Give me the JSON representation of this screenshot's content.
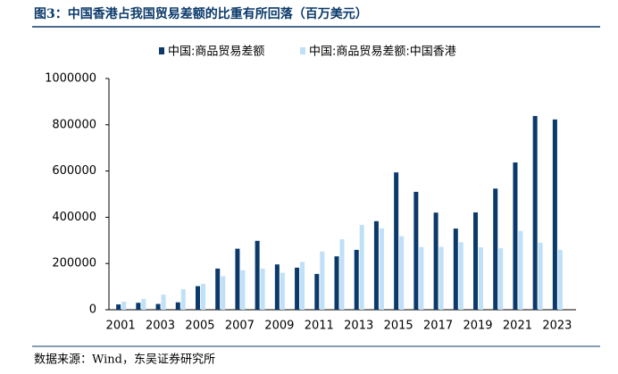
{
  "chart_data": {
    "type": "bar",
    "title": "图3：中国香港占我国贸易差额的比重有所回落（百万美元）",
    "source": "数据来源：Wind，东吴证券研究所",
    "categories": [
      "2001",
      null,
      "2003",
      null,
      "2005",
      null,
      "2007",
      null,
      "2009",
      null,
      "2011",
      null,
      "2013",
      null,
      "2015",
      null,
      "2017",
      null,
      "2019",
      null,
      "2021",
      null,
      "2023"
    ],
    "series": [
      {
        "name": "中国:商品贸易差额",
        "color": "#0b3a6a",
        "values": [
          23000,
          30000,
          25000,
          32000,
          102000,
          178000,
          264000,
          298000,
          196000,
          182000,
          155000,
          231000,
          259000,
          383000,
          594000,
          510000,
          420000,
          351000,
          421000,
          524000,
          637000,
          838000,
          823000
        ]
      },
      {
        "name": "中国:商品贸易差额:中国香港",
        "color": "#bfe0f7",
        "values": [
          35000,
          47000,
          65000,
          89000,
          112000,
          145000,
          171000,
          178000,
          160000,
          207000,
          252000,
          305000,
          367000,
          352000,
          318000,
          271000,
          272000,
          292000,
          270000,
          266000,
          341000,
          290000,
          259000
        ]
      }
    ],
    "ylim": [
      0,
      1000000
    ],
    "yticks": [
      0,
      200000,
      400000,
      600000,
      800000,
      1000000
    ],
    "legend": "top",
    "grid": false
  }
}
